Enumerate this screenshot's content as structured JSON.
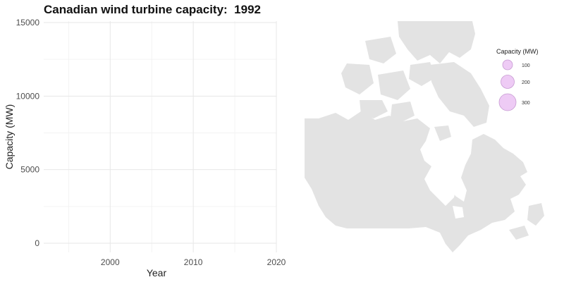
{
  "chart_data": [
    {
      "type": "line",
      "title": "Canadian wind turbine capacity:  1992",
      "xlabel": "Year",
      "ylabel": "Capacity (MW)",
      "xlim": [
        1992,
        2020
      ],
      "ylim": [
        0,
        15000
      ],
      "x_ticks": [
        2000,
        2010,
        2020
      ],
      "x_tick_labels": [
        "2000",
        "2010",
        "2020"
      ],
      "y_ticks": [
        0,
        5000,
        10000,
        15000
      ],
      "y_tick_labels": [
        "0",
        "5000",
        "10000",
        "15000"
      ],
      "grid": true,
      "series": [
        {
          "x": [],
          "y": []
        }
      ]
    },
    {
      "type": "scatter",
      "region": "Canada",
      "legend": {
        "title": "Capacity (MW)",
        "position": "top-right",
        "entries": [
          {
            "label": "100",
            "value": 100
          },
          {
            "label": "200",
            "value": 200
          },
          {
            "label": "300",
            "value": 300
          }
        ]
      },
      "points": [],
      "colors": {
        "land": "#e3e3e3",
        "bubble_fill": "#eecbf5",
        "bubble_stroke": "#c79bd2"
      }
    }
  ]
}
